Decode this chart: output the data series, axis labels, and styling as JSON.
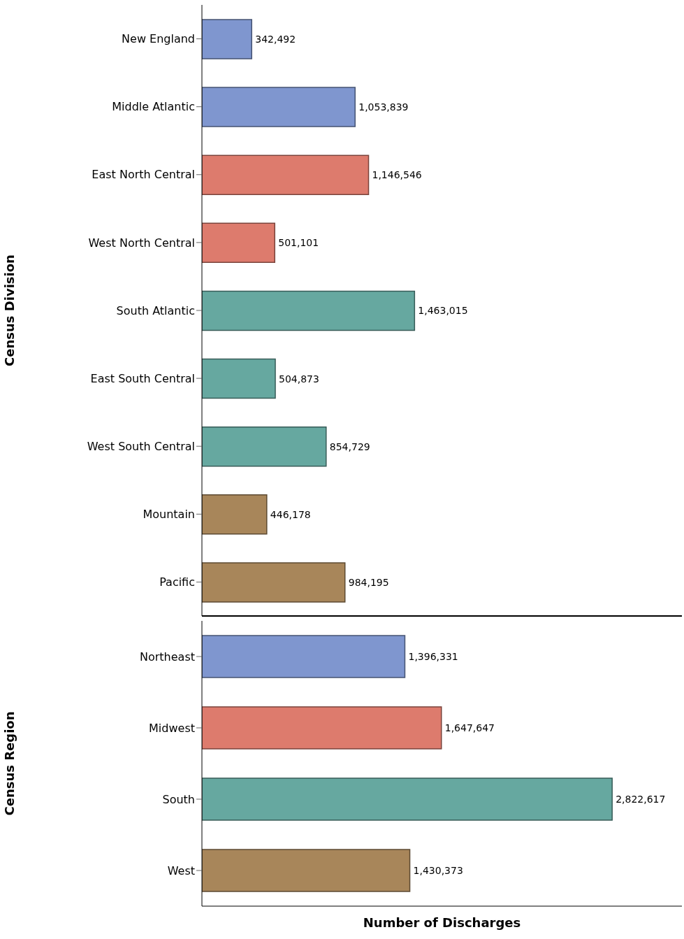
{
  "chart_data": [
    {
      "type": "bar",
      "orientation": "horizontal",
      "ylabel": "Census Division",
      "tick_labels": "y",
      "categories": [
        "New England",
        "Middle Atlantic",
        "East North Central",
        "West North Central",
        "South Atlantic",
        "East South Central",
        "West South Central",
        "Mountain",
        "Pacific"
      ],
      "values": [
        342492,
        1053839,
        1146546,
        501101,
        1463015,
        504873,
        854729,
        446178,
        984195
      ],
      "value_labels": [
        "342,492",
        "1,053,839",
        "1,146,546",
        "501,101",
        "1,463,015",
        "504,873",
        "854,729",
        "446,178",
        "984,195"
      ],
      "colors": [
        "#7f96cf",
        "#7f96cf",
        "#dd7b6d",
        "#dd7b6d",
        "#66a8a0",
        "#66a8a0",
        "#66a8a0",
        "#a8865a",
        "#a8865a"
      ]
    },
    {
      "type": "bar",
      "orientation": "horizontal",
      "ylabel": "Census Region",
      "xlabel": "Number of Discharges",
      "tick_labels": "y",
      "categories": [
        "Northeast",
        "Midwest",
        "South",
        "West"
      ],
      "values": [
        1396331,
        1647647,
        2822617,
        1430373
      ],
      "value_labels": [
        "1,396,331",
        "1,647,647",
        "2,822,617",
        "1,430,373"
      ],
      "colors": [
        "#7f96cf",
        "#dd7b6d",
        "#66a8a0",
        "#a8865a"
      ]
    }
  ]
}
